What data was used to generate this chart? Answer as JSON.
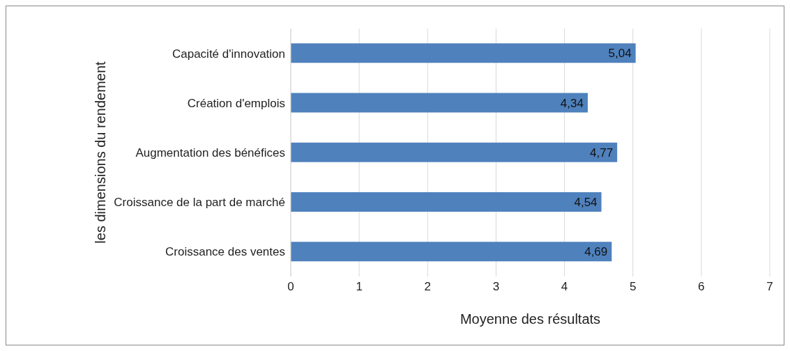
{
  "chart_data": {
    "type": "bar",
    "orientation": "horizontal",
    "xlabel": "Moyenne des résultats",
    "ylabel": "les dimensions du rendement",
    "categories": [
      "Capacité d'innovation",
      "Création d'emplois",
      "Augmentation des bénéfices",
      "Croissance de la part de marché",
      "Croissance des ventes"
    ],
    "values": [
      5.04,
      4.34,
      4.77,
      4.54,
      4.69
    ],
    "value_labels": [
      "5,04",
      "4,34",
      "4,77",
      "4,54",
      "4,69"
    ],
    "color": "#4f81bd",
    "xlim": [
      0,
      7
    ],
    "xticks": [
      0,
      1,
      2,
      3,
      4,
      5,
      6,
      7
    ],
    "grid": "x"
  }
}
